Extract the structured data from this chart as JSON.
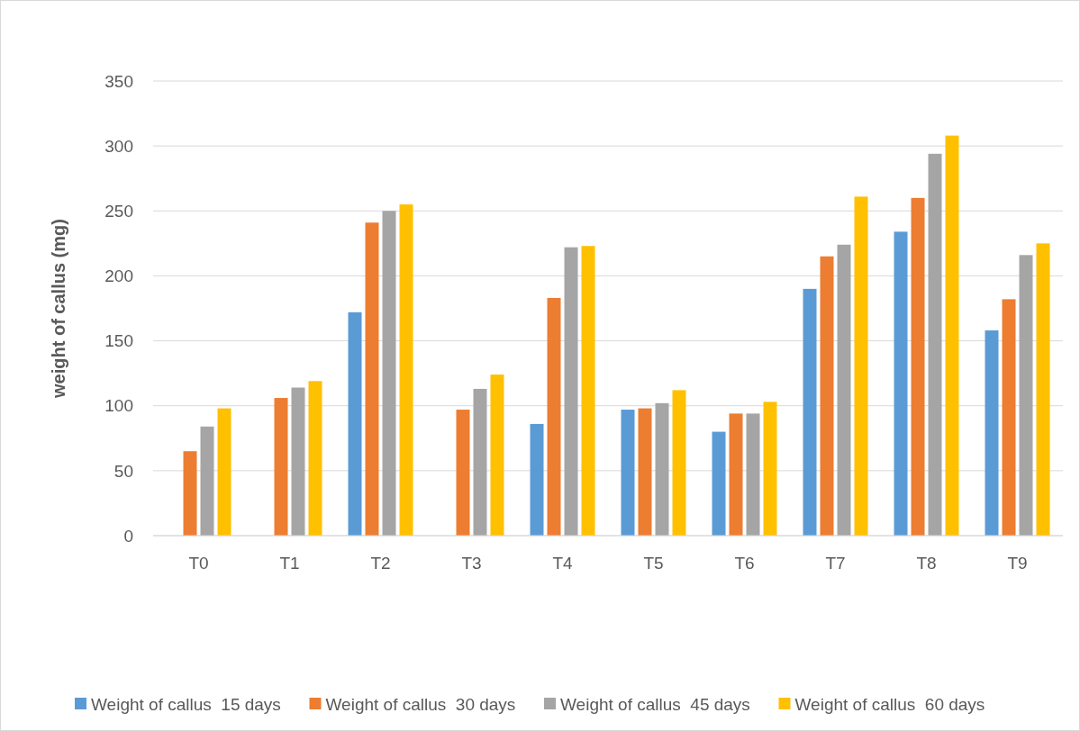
{
  "chart_data": {
    "type": "bar",
    "ylabel": "weight of callus (mg)",
    "categories": [
      "T0",
      "T1",
      "T2",
      "T3",
      "T4",
      "T5",
      "T6",
      "T7",
      "T8",
      "T9"
    ],
    "series": [
      {
        "name": "Weight of callus  15 days",
        "color": "#5b9bd5",
        "values": [
          null,
          null,
          172,
          null,
          86,
          97,
          80,
          190,
          234,
          158
        ]
      },
      {
        "name": "Weight of callus  30 days",
        "color": "#ed7d31",
        "values": [
          65,
          106,
          241,
          97,
          183,
          98,
          94,
          215,
          260,
          182
        ]
      },
      {
        "name": "Weight of callus  45 days",
        "color": "#a5a5a5",
        "values": [
          84,
          114,
          250,
          113,
          222,
          102,
          94,
          224,
          294,
          216
        ]
      },
      {
        "name": "Weight of callus  60 days",
        "color": "#ffc000",
        "values": [
          98,
          119,
          255,
          124,
          223,
          112,
          103,
          261,
          308,
          225
        ]
      }
    ],
    "ylim": [
      0,
      350
    ],
    "yticks": [
      0,
      50,
      100,
      150,
      200,
      250,
      300,
      350
    ],
    "grid": true,
    "legend": "bottom"
  }
}
